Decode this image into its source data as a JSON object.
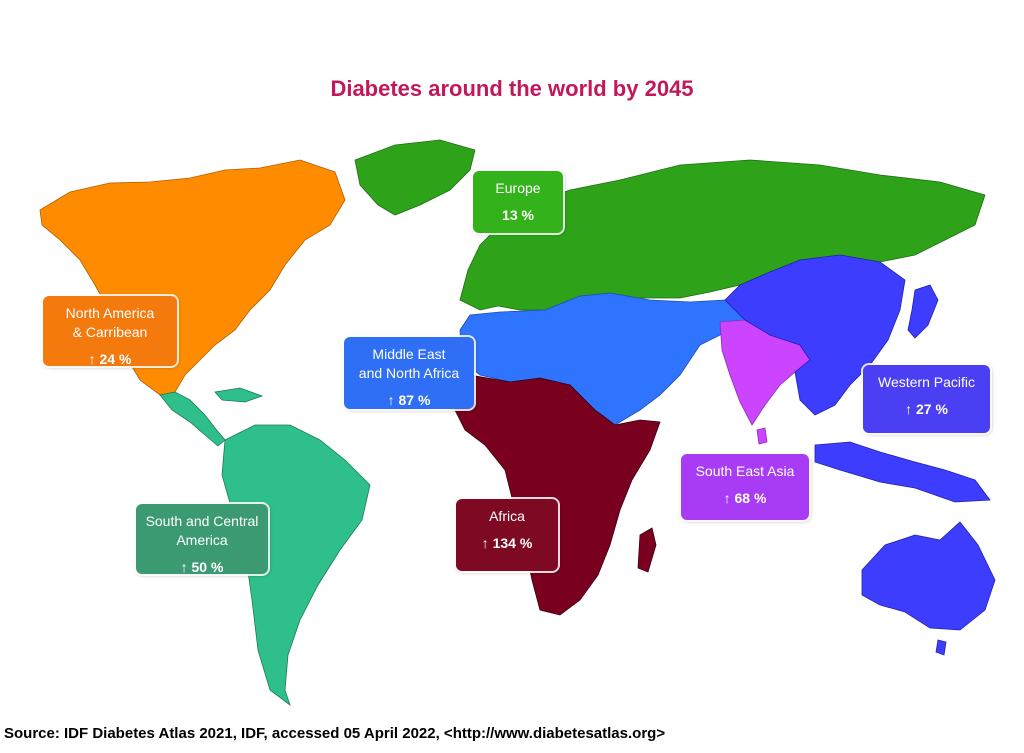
{
  "title": "Diabetes around the world by 2045",
  "title_color": "#c2185b",
  "source": "Source: IDF Diabetes Atlas 2021, IDF, accessed 05 April 2022, <http://www.diabetesatlas.org>",
  "regions": [
    {
      "id": "north-america",
      "name": "North America\n& Carribean",
      "change": "↑ 24 %",
      "color": "#ff8c00",
      "box_color": "#f47a0e",
      "change_percent": 24
    },
    {
      "id": "south-central-america",
      "name": "South and Central\nAmerica",
      "change": "↑ 50 %",
      "color": "#2fbf8a",
      "box_color": "#3c9a72",
      "change_percent": 50
    },
    {
      "id": "europe",
      "name": "Europe",
      "change": "13 %",
      "color": "#2ea31a",
      "box_color": "#33b21c",
      "change_percent": 13
    },
    {
      "id": "mena",
      "name": "Middle East\nand North Africa",
      "change": "↑ 87 %",
      "color": "#2f74ff",
      "box_color": "#2f6ff5",
      "change_percent": 87
    },
    {
      "id": "africa",
      "name": "Africa",
      "change": "↑ 134 %",
      "color": "#7a0020",
      "box_color": "#7d0a22",
      "change_percent": 134
    },
    {
      "id": "south-east-asia",
      "name": "South East Asia",
      "change": "↑ 68 %",
      "color": "#cc44ff",
      "box_color": "#a83cf5",
      "change_percent": 68
    },
    {
      "id": "western-pacific",
      "name": "Western Pacific",
      "change": "↑ 27 %",
      "color": "#3d3dff",
      "box_color": "#4a3ff2",
      "change_percent": 27
    }
  ]
}
